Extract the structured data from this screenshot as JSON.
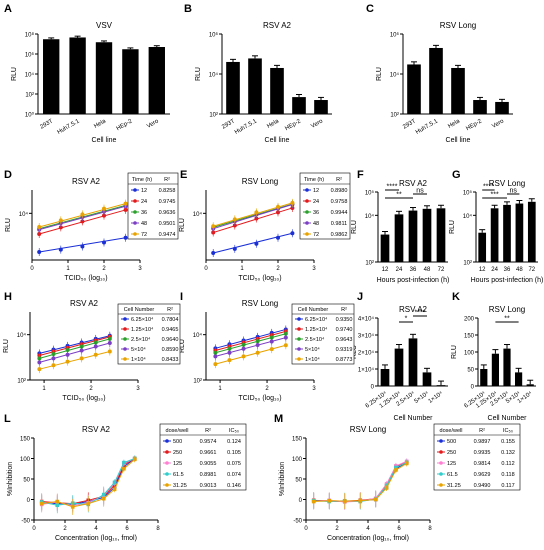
{
  "colors": {
    "axis": "#000000",
    "bar": "#000000",
    "c12": "#1a2fd6",
    "c24": "#e31a1c",
    "c36": "#2ca02c",
    "c48": "#7b3fc4",
    "c72": "#e8a300",
    "pink": "#ff7fd0",
    "cyan": "#33cccc"
  },
  "panel_letters": [
    "A",
    "B",
    "C",
    "D",
    "E",
    "F",
    "G",
    "H",
    "I",
    "J",
    "K",
    "L",
    "M"
  ],
  "tables": {
    "D": {
      "headers": [
        "Time (h)",
        "R²"
      ],
      "rows": [
        [
          "12",
          "0.8258"
        ],
        [
          "24",
          "0.9745"
        ],
        [
          "36",
          "0.9636"
        ],
        [
          "48",
          "0.9501"
        ],
        [
          "72",
          "0.9474"
        ]
      ]
    },
    "E": {
      "headers": [
        "Time (h)",
        "R²"
      ],
      "rows": [
        [
          "12",
          "0.8980"
        ],
        [
          "24",
          "0.9758"
        ],
        [
          "36",
          "0.9944"
        ],
        [
          "48",
          "0.9811"
        ],
        [
          "72",
          "0.9862"
        ]
      ]
    },
    "H": {
      "headers": [
        "Cell Number",
        "R²"
      ],
      "rows": [
        [
          "6.25×10⁴",
          "0.7804"
        ],
        [
          "1.25×10⁴",
          "0.9465"
        ],
        [
          "2.5×10⁴",
          "0.9640"
        ],
        [
          "5×10⁴",
          "0.8590"
        ],
        [
          "1×10⁴",
          "0.8433"
        ]
      ]
    },
    "I": {
      "headers": [
        "Cell Number",
        "R²"
      ],
      "rows": [
        [
          "6.25×10⁴",
          "0.9350"
        ],
        [
          "1.25×10⁴",
          "0.9740"
        ],
        [
          "2.5×10⁴",
          "0.9643"
        ],
        [
          "5×10⁴",
          "0.9319"
        ],
        [
          "1×10⁴",
          "0.8773"
        ]
      ]
    },
    "L": {
      "headers": [
        "dose/well",
        "R²",
        "IC₅₀"
      ],
      "rows": [
        [
          "500",
          "0.9574",
          "0.124"
        ],
        [
          "250",
          "0.9661",
          "0.105"
        ],
        [
          "125",
          "0.9055",
          "0.075"
        ],
        [
          "61.5",
          "0.8981",
          "0.074"
        ],
        [
          "31.25",
          "0.9013",
          "0.146"
        ]
      ]
    },
    "M": {
      "headers": [
        "dose/well",
        "R²",
        "IC₅₀"
      ],
      "rows": [
        [
          "500",
          "0.9897",
          "0.155"
        ],
        [
          "250",
          "0.9935",
          "0.132"
        ],
        [
          "125",
          "0.9814",
          "0.112"
        ],
        [
          "61.5",
          "0.9629",
          "0.118"
        ],
        [
          "31.25",
          "0.9490",
          "0.117"
        ]
      ]
    }
  },
  "chart_data": [
    {
      "panel": "A",
      "type": "bar",
      "title": "VSV",
      "xlabel": "Cell line",
      "ylabel": "RLU",
      "yscale": "log",
      "ylim": [
        1,
        100000000.0
      ],
      "yticks": [
        "10⁰",
        "10²",
        "10⁴",
        "10⁶",
        "10⁸"
      ],
      "categories": [
        "293T",
        "Huh7.5.1",
        "Hela",
        "HEp-2",
        "Vero"
      ],
      "values": [
        30000000.0,
        45000000.0,
        15000000.0,
        3000000.0,
        5000000.0
      ]
    },
    {
      "panel": "B",
      "type": "bar",
      "title": "RSV A2",
      "xlabel": "Cell line",
      "ylabel": "RLU",
      "yscale": "log",
      "ylim": [
        100,
        1000000.0
      ],
      "yticks": [
        "10²",
        "10⁴",
        "10⁶"
      ],
      "categories": [
        "293T",
        "Huh7.5.1",
        "Hela",
        "HEp-2",
        "Vero"
      ],
      "values": [
        40000,
        60000,
        20000,
        700,
        500
      ]
    },
    {
      "panel": "C",
      "type": "bar",
      "title": "RSV Long",
      "xlabel": "Cell line",
      "ylabel": "RLU",
      "yscale": "log",
      "ylim": [
        100,
        1000000.0
      ],
      "yticks": [
        "10²",
        "10⁴",
        "10⁶"
      ],
      "categories": [
        "293T",
        "Huh7.5.1",
        "Hela",
        "HEp-2",
        "Vero"
      ],
      "values": [
        30000,
        200000,
        20000,
        500,
        400
      ]
    },
    {
      "panel": "D",
      "type": "scatter",
      "title": "RSV A2",
      "xlabel": "TCID₅₀ (log₁₀)",
      "ylabel": "RLU",
      "yscale": "log",
      "xlim": [
        0,
        3
      ],
      "ylim": [
        100,
        100000.0
      ],
      "xticks": [
        0,
        1,
        2,
        3
      ],
      "yticks": [
        "10⁴"
      ],
      "series": [
        {
          "name": "12",
          "x": [
            0.2,
            0.8,
            1.4,
            2.0,
            2.6
          ],
          "y": [
            220,
            280,
            380,
            560,
            900
          ]
        },
        {
          "name": "24",
          "x": [
            0.2,
            0.8,
            1.4,
            2.0,
            2.6
          ],
          "y": [
            1300,
            2500,
            4500,
            8000,
            14000
          ]
        },
        {
          "name": "36",
          "x": [
            0.2,
            0.8,
            1.4,
            2.0,
            2.6
          ],
          "y": [
            2200,
            4200,
            7500,
            13000,
            22000
          ]
        },
        {
          "name": "48",
          "x": [
            0.2,
            0.8,
            1.4,
            2.0,
            2.6
          ],
          "y": [
            2000,
            3800,
            7000,
            12000,
            20000
          ]
        },
        {
          "name": "72",
          "x": [
            0.2,
            0.8,
            1.4,
            2.0,
            2.6
          ],
          "y": [
            2600,
            5000,
            9000,
            16000,
            26000
          ]
        }
      ]
    },
    {
      "panel": "E",
      "type": "scatter",
      "title": "RSV Long",
      "xlabel": "TCID₅₀ (log₁₀)",
      "ylabel": "RLU",
      "yscale": "log",
      "xlim": [
        0,
        3
      ],
      "ylim": [
        100,
        100000.0
      ],
      "xticks": [
        0,
        1,
        2,
        3
      ],
      "yticks": [
        "10⁴"
      ],
      "series": [
        {
          "name": "12",
          "x": [
            0.2,
            0.8,
            1.4,
            2.0,
            2.4
          ],
          "y": [
            200,
            300,
            500,
            900,
            1400
          ]
        },
        {
          "name": "24",
          "x": [
            0.2,
            0.8,
            1.4,
            2.0,
            2.4
          ],
          "y": [
            1500,
            3000,
            6000,
            11000,
            17000
          ]
        },
        {
          "name": "36",
          "x": [
            0.2,
            0.8,
            1.4,
            2.0,
            2.4
          ],
          "y": [
            2500,
            5000,
            9500,
            17000,
            25000
          ]
        },
        {
          "name": "48",
          "x": [
            0.2,
            0.8,
            1.4,
            2.0,
            2.4
          ],
          "y": [
            2200,
            4500,
            9000,
            16000,
            24000
          ]
        },
        {
          "name": "72",
          "x": [
            0.2,
            0.8,
            1.4,
            2.0,
            2.4
          ],
          "y": [
            2800,
            5500,
            11000,
            19000,
            28000
          ]
        }
      ]
    },
    {
      "panel": "F",
      "type": "bar",
      "title": "RSV A2",
      "xlabel": "Hours post-infection (h)",
      "ylabel": "RLU",
      "yscale": "log",
      "ylim": [
        100,
        100000.0
      ],
      "yticks": [
        "10²",
        "10⁴",
        "10⁵"
      ],
      "categories": [
        "12",
        "24",
        "36",
        "48",
        "72"
      ],
      "values": [
        1500,
        11000,
        16000,
        19000,
        20000
      ],
      "annotations": [
        "****",
        "**",
        "ns"
      ]
    },
    {
      "panel": "G",
      "type": "bar",
      "title": "RSV Long",
      "xlabel": "Hours post-infection (h)",
      "ylabel": "RLU",
      "yscale": "log",
      "ylim": [
        100,
        100000.0
      ],
      "yticks": [
        "10²",
        "10⁴",
        "10⁵"
      ],
      "categories": [
        "12",
        "24",
        "36",
        "48",
        "72"
      ],
      "values": [
        1800,
        20000,
        28000,
        32000,
        38000
      ],
      "annotations": [
        "****",
        "***",
        "ns"
      ]
    },
    {
      "panel": "H",
      "type": "scatter",
      "title": "RSV A2",
      "xlabel": "TCID₅₀ (log₁₀)",
      "ylabel": "RLU",
      "yscale": "log",
      "xlim": [
        0.7,
        3
      ],
      "ylim": [
        100,
        100000.0
      ],
      "xticks": [
        1,
        2,
        3
      ],
      "yticks": [
        "10²",
        "10⁴"
      ],
      "series": [
        {
          "name": "6.25×10⁴",
          "x": [
            0.9,
            1.2,
            1.5,
            1.8,
            2.1,
            2.4
          ],
          "y": [
            1500,
            2200,
            3200,
            4500,
            6500,
            9000
          ]
        },
        {
          "name": "1.25×10⁴",
          "x": [
            0.9,
            1.2,
            1.5,
            1.8,
            2.1,
            2.4
          ],
          "y": [
            1200,
            1800,
            2600,
            3800,
            5500,
            8000
          ]
        },
        {
          "name": "2.5×10⁴",
          "x": [
            0.9,
            1.2,
            1.5,
            1.8,
            2.1,
            2.4
          ],
          "y": [
            900,
            1400,
            2100,
            3000,
            4500,
            6500
          ]
        },
        {
          "name": "5×10⁴",
          "x": [
            0.9,
            1.2,
            1.5,
            1.8,
            2.1,
            2.4
          ],
          "y": [
            600,
            900,
            1300,
            2000,
            3000,
            4300
          ]
        },
        {
          "name": "1×10⁴",
          "x": [
            0.9,
            1.2,
            1.5,
            1.8,
            2.1,
            2.4
          ],
          "y": [
            300,
            450,
            650,
            900,
            1300,
            1800
          ]
        }
      ]
    },
    {
      "panel": "I",
      "type": "scatter",
      "title": "RSV Long",
      "xlabel": "TCID₅₀ (log₁₀)",
      "ylabel": "RLU",
      "yscale": "log",
      "xlim": [
        0.7,
        3
      ],
      "ylim": [
        100,
        100000.0
      ],
      "xticks": [
        1,
        2,
        3
      ],
      "yticks": [
        "10²",
        "10⁴"
      ],
      "series": [
        {
          "name": "6.25×10⁴",
          "x": [
            0.9,
            1.2,
            1.5,
            1.8,
            2.1,
            2.4
          ],
          "y": [
            2500,
            3800,
            5500,
            8000,
            12000,
            17000
          ]
        },
        {
          "name": "1.25×10⁴",
          "x": [
            0.9,
            1.2,
            1.5,
            1.8,
            2.1,
            2.4
          ],
          "y": [
            2000,
            3000,
            4500,
            6500,
            9500,
            14000
          ]
        },
        {
          "name": "2.5×10⁴",
          "x": [
            0.9,
            1.2,
            1.5,
            1.8,
            2.1,
            2.4
          ],
          "y": [
            1600,
            2400,
            3600,
            5200,
            7500,
            11000
          ]
        },
        {
          "name": "5×10⁴",
          "x": [
            0.9,
            1.2,
            1.5,
            1.8,
            2.1,
            2.4
          ],
          "y": [
            1100,
            1600,
            2400,
            3500,
            5000,
            7400
          ]
        },
        {
          "name": "1×10⁴",
          "x": [
            0.9,
            1.2,
            1.5,
            1.8,
            2.1,
            2.4
          ],
          "y": [
            500,
            750,
            1100,
            1600,
            2300,
            3400
          ]
        }
      ]
    },
    {
      "panel": "J",
      "type": "bar",
      "title": "RSV A2",
      "xlabel": "Cell Number",
      "ylabel": "RLU",
      "yscale": "linear",
      "ylim": [
        0,
        40000
      ],
      "yticks": [
        "0",
        "1×10⁴",
        "2×10⁴",
        "3×10⁴",
        "4×10⁴"
      ],
      "categories": [
        "6.25×10⁴",
        "1.25×10⁴",
        "2.5×10⁴",
        "5×10⁴",
        "1×10⁴"
      ],
      "values": [
        10000,
        22000,
        28000,
        8000,
        500
      ],
      "annotations": [
        "*",
        "****"
      ]
    },
    {
      "panel": "K",
      "type": "bar",
      "title": "RSV Long",
      "xlabel": "Cell Number",
      "ylabel": "RLU",
      "yscale": "linear",
      "ylim": [
        0,
        200
      ],
      "yticks": [
        "0",
        "50",
        "100",
        "150",
        "200"
      ],
      "categories": [
        "6.25×10⁴",
        "1.25×10⁴",
        "2.5×10⁴",
        "5×10⁴",
        "1×10⁴"
      ],
      "values": [
        50,
        95,
        110,
        40,
        5
      ],
      "annotations": [
        "**"
      ]
    },
    {
      "panel": "L",
      "type": "line",
      "title": "RSV A2",
      "xlabel": "Concentration (log₁₀, fmol)",
      "ylabel": "%Inhibition",
      "xlim": [
        0,
        8
      ],
      "ylim": [
        -50,
        150
      ],
      "xticks": [
        0,
        2,
        4,
        6,
        8
      ],
      "yticks": [
        -50,
        0,
        50,
        100,
        150
      ],
      "series": [
        {
          "name": "500",
          "x": [
            0.5,
            1.5,
            2.5,
            3.5,
            4.5,
            5.2,
            5.8,
            6.5
          ],
          "y": [
            -8,
            -10,
            -12,
            -5,
            5,
            30,
            80,
            100
          ]
        },
        {
          "name": "250",
          "x": [
            0.5,
            1.5,
            2.5,
            3.5,
            4.5,
            5.2,
            5.8,
            6.5
          ],
          "y": [
            -5,
            -8,
            -10,
            -2,
            8,
            35,
            85,
            100
          ]
        },
        {
          "name": "125",
          "x": [
            0.5,
            1.5,
            2.5,
            3.5,
            4.5,
            5.2,
            5.8,
            6.5
          ],
          "y": [
            -12,
            -6,
            -15,
            -8,
            10,
            40,
            88,
            100
          ]
        },
        {
          "name": "61.5",
          "x": [
            0.5,
            1.5,
            2.5,
            3.5,
            4.5,
            5.2,
            5.8,
            6.5
          ],
          "y": [
            -6,
            -14,
            -9,
            -12,
            12,
            42,
            90,
            100
          ]
        },
        {
          "name": "31.25",
          "x": [
            0.5,
            1.5,
            2.5,
            3.5,
            4.5,
            5.2,
            5.8,
            6.5
          ],
          "y": [
            -10,
            -5,
            -18,
            -10,
            2,
            25,
            75,
            98
          ]
        }
      ]
    },
    {
      "panel": "M",
      "type": "line",
      "title": "RSV Long",
      "xlabel": "Concentration (log₁₀, fmol)",
      "ylabel": "%Inhibition",
      "xlim": [
        0,
        8
      ],
      "ylim": [
        -50,
        150
      ],
      "xticks": [
        0,
        2,
        4,
        6,
        8
      ],
      "yticks": [
        -50,
        0,
        50,
        100,
        150
      ],
      "series": [
        {
          "name": "500",
          "x": [
            0.5,
            1.5,
            2.5,
            3.5,
            4.5,
            5.2,
            5.8,
            6.5
          ],
          "y": [
            -3,
            -4,
            -5,
            -3,
            0,
            30,
            75,
            90
          ]
        },
        {
          "name": "250",
          "x": [
            0.5,
            1.5,
            2.5,
            3.5,
            4.5,
            5.2,
            5.8,
            6.5
          ],
          "y": [
            -2,
            -3,
            -4,
            -2,
            2,
            35,
            80,
            92
          ]
        },
        {
          "name": "125",
          "x": [
            0.5,
            1.5,
            2.5,
            3.5,
            4.5,
            5.2,
            5.8,
            6.5
          ],
          "y": [
            -4,
            -2,
            -6,
            -4,
            3,
            38,
            82,
            93
          ]
        },
        {
          "name": "61.5",
          "x": [
            0.5,
            1.5,
            2.5,
            3.5,
            4.5,
            5.2,
            5.8,
            6.5
          ],
          "y": [
            -3,
            -5,
            -3,
            -5,
            1,
            33,
            78,
            90
          ]
        },
        {
          "name": "31.25",
          "x": [
            0.5,
            1.5,
            2.5,
            3.5,
            4.5,
            5.2,
            5.8,
            6.5
          ],
          "y": [
            -5,
            -3,
            -4,
            -3,
            0,
            28,
            72,
            88
          ]
        }
      ]
    }
  ]
}
